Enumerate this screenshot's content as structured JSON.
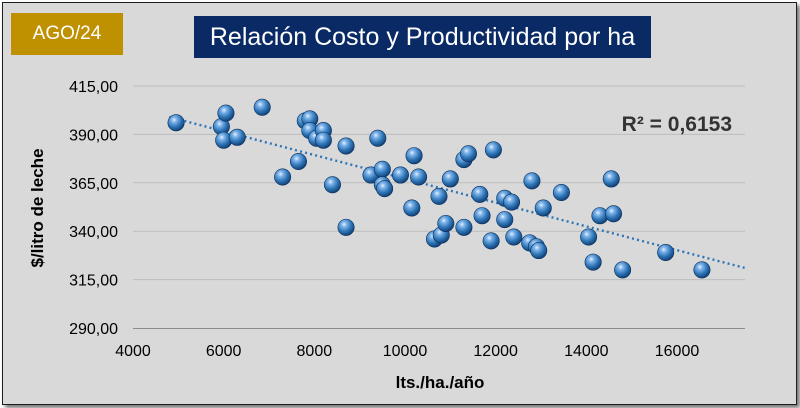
{
  "badge": {
    "label": "AGO/24",
    "color": "#bf9000"
  },
  "title": {
    "text": "Relación Costo y Productividad por ha",
    "color": "#0a2a66"
  },
  "chart_data": {
    "type": "scatter",
    "title": "Relación Costo y Productividad por ha",
    "xlabel": "lts./ha./año",
    "ylabel": "$/litro de leche",
    "xlim": [
      4000,
      17500
    ],
    "ylim": [
      290,
      415
    ],
    "xticks": [
      4000,
      6000,
      8000,
      10000,
      12000,
      14000,
      16000
    ],
    "xtick_labels": [
      "4000",
      "6000",
      "8000",
      "10000",
      "12000",
      "14000",
      "16000"
    ],
    "yticks": [
      290,
      315,
      340,
      365,
      390,
      415
    ],
    "ytick_labels": [
      "290,00",
      "315,00",
      "340,00",
      "365,00",
      "390,00",
      "415,00"
    ],
    "grid": "horizontal",
    "marker_color": "#2e75b6",
    "trendline": {
      "type": "linear",
      "label": "R² = 0,6153",
      "x": [
        4800,
        17500
      ],
      "y": [
        399,
        321
      ],
      "color": "#2e75b6"
    },
    "points": [
      {
        "x": 4950,
        "y": 396
      },
      {
        "x": 5950,
        "y": 394
      },
      {
        "x": 6050,
        "y": 401
      },
      {
        "x": 6000,
        "y": 387
      },
      {
        "x": 6300,
        "y": 388.5
      },
      {
        "x": 6850,
        "y": 404
      },
      {
        "x": 7300,
        "y": 368
      },
      {
        "x": 7650,
        "y": 376
      },
      {
        "x": 7800,
        "y": 397
      },
      {
        "x": 7900,
        "y": 398
      },
      {
        "x": 7900,
        "y": 392
      },
      {
        "x": 8050,
        "y": 388
      },
      {
        "x": 8200,
        "y": 392
      },
      {
        "x": 8200,
        "y": 387
      },
      {
        "x": 8400,
        "y": 364
      },
      {
        "x": 8700,
        "y": 384
      },
      {
        "x": 8700,
        "y": 342
      },
      {
        "x": 9250,
        "y": 369
      },
      {
        "x": 9400,
        "y": 388
      },
      {
        "x": 9500,
        "y": 372
      },
      {
        "x": 9500,
        "y": 364
      },
      {
        "x": 9550,
        "y": 362
      },
      {
        "x": 9900,
        "y": 369
      },
      {
        "x": 10150,
        "y": 352
      },
      {
        "x": 10200,
        "y": 379
      },
      {
        "x": 10300,
        "y": 368
      },
      {
        "x": 10650,
        "y": 336
      },
      {
        "x": 10750,
        "y": 358
      },
      {
        "x": 10800,
        "y": 338
      },
      {
        "x": 10900,
        "y": 344
      },
      {
        "x": 11000,
        "y": 367
      },
      {
        "x": 11300,
        "y": 342
      },
      {
        "x": 11300,
        "y": 377
      },
      {
        "x": 11400,
        "y": 380
      },
      {
        "x": 11650,
        "y": 359
      },
      {
        "x": 11700,
        "y": 348
      },
      {
        "x": 11900,
        "y": 335
      },
      {
        "x": 11950,
        "y": 382
      },
      {
        "x": 12200,
        "y": 346
      },
      {
        "x": 12200,
        "y": 357
      },
      {
        "x": 12350,
        "y": 355
      },
      {
        "x": 12400,
        "y": 337
      },
      {
        "x": 12750,
        "y": 334
      },
      {
        "x": 12800,
        "y": 366
      },
      {
        "x": 12900,
        "y": 332
      },
      {
        "x": 12950,
        "y": 330
      },
      {
        "x": 13050,
        "y": 352
      },
      {
        "x": 13450,
        "y": 360
      },
      {
        "x": 14050,
        "y": 337
      },
      {
        "x": 14150,
        "y": 324
      },
      {
        "x": 14300,
        "y": 348
      },
      {
        "x": 14550,
        "y": 367
      },
      {
        "x": 14600,
        "y": 349
      },
      {
        "x": 14800,
        "y": 320
      },
      {
        "x": 15750,
        "y": 329
      },
      {
        "x": 16550,
        "y": 320
      }
    ]
  }
}
